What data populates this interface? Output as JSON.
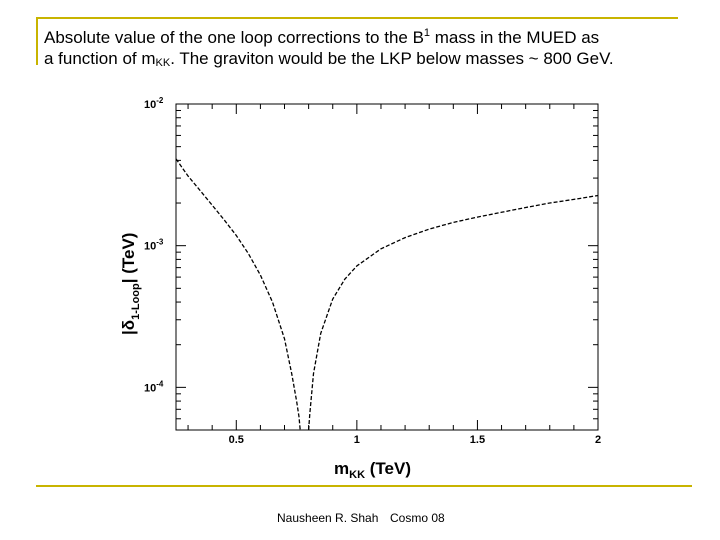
{
  "colors": {
    "accent": "#c8b400",
    "text": "#000000"
  },
  "caption": {
    "line1_pre": "Absolute value of the one loop corrections to the B",
    "line1_sup": "1",
    "line1_post": " mass in the MUED as",
    "line2_pre": "a function of m",
    "line2_sub": "KK",
    "line2_post": ". The graviton would be the LKP below masses ~ 800 GeV."
  },
  "footer": {
    "author": "Nausheen R. Shah",
    "event": "Cosmo 08"
  },
  "chart_data": {
    "type": "line",
    "xlabel_main": "m",
    "xlabel_sub": "KK",
    "xlabel_unit": " (TeV)",
    "ylabel_main": "|δ",
    "ylabel_sub": "1-Loop",
    "ylabel_unit": "| (TeV)",
    "xlim": [
      0.25,
      2.0
    ],
    "ylim": [
      5e-05,
      0.01
    ],
    "yscale": "log",
    "x_ticks": [
      {
        "value": 0.5,
        "label": "0.5"
      },
      {
        "value": 1.0,
        "label": "1"
      },
      {
        "value": 1.5,
        "label": "1.5"
      },
      {
        "value": 2.0,
        "label": "2"
      }
    ],
    "y_ticks": [
      {
        "value": 0.01,
        "base": "10",
        "exp": "-2"
      },
      {
        "value": 0.001,
        "base": "10",
        "exp": "-3"
      },
      {
        "value": 0.0001,
        "base": "10",
        "exp": "-4"
      }
    ],
    "grid": false,
    "series": [
      {
        "style": "dashed",
        "points": [
          [
            0.25,
            0.0041
          ],
          [
            0.3,
            0.0031
          ],
          [
            0.35,
            0.00245
          ],
          [
            0.4,
            0.00193
          ],
          [
            0.45,
            0.00152
          ],
          [
            0.5,
            0.00118
          ],
          [
            0.55,
            0.00088
          ],
          [
            0.6,
            0.00062
          ],
          [
            0.65,
            0.0004
          ],
          [
            0.7,
            0.00022
          ],
          [
            0.73,
            0.000125
          ],
          [
            0.75,
            8e-05
          ],
          [
            0.76,
            6.2e-05
          ],
          [
            0.765,
            5e-05
          ]
        ]
      },
      {
        "style": "dashed",
        "points": [
          [
            0.8,
            5e-05
          ],
          [
            0.805,
            6.5e-05
          ],
          [
            0.82,
            0.000125
          ],
          [
            0.85,
            0.00024
          ],
          [
            0.9,
            0.00042
          ],
          [
            0.95,
            0.00058
          ],
          [
            1.0,
            0.00072
          ],
          [
            1.1,
            0.00095
          ],
          [
            1.2,
            0.00114
          ],
          [
            1.3,
            0.00131
          ],
          [
            1.4,
            0.00146
          ],
          [
            1.5,
            0.00159
          ],
          [
            1.6,
            0.00172
          ],
          [
            1.7,
            0.00186
          ],
          [
            1.8,
            0.002
          ],
          [
            1.9,
            0.00212
          ],
          [
            2.0,
            0.00226
          ]
        ]
      }
    ]
  }
}
